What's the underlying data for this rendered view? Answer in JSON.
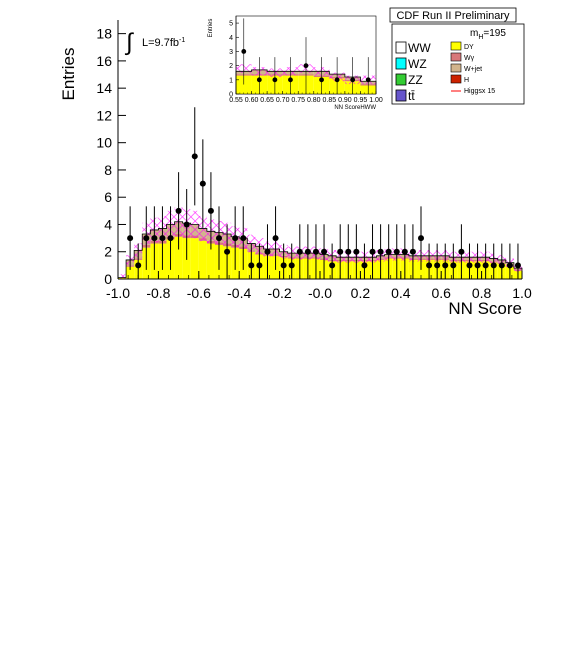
{
  "chart_data": [
    {
      "type": "bar",
      "subtype": "stacked-histogram",
      "title": "CDF Run II Preliminary",
      "xlabel": "NN Score",
      "ylabel": "Entries",
      "xlim": [
        -1.0,
        1.0
      ],
      "ylim": [
        0,
        19
      ],
      "x_ticks": [
        "-1.0",
        "-0.8",
        "-0.6",
        "-0.4",
        "-0.2",
        "-0.0",
        "0.2",
        "0.4",
        "0.6",
        "0.8",
        "1.0"
      ],
      "y_ticks": [
        "0",
        "2",
        "4",
        "6",
        "8",
        "10",
        "12",
        "14",
        "16",
        "18"
      ],
      "luminosity_label": "L=9.7fb",
      "luminosity_sup": "-1",
      "mass_label": "m",
      "mass_sub": "H",
      "mass_value": "=195",
      "bin_edges": [
        -1.0,
        -0.96,
        -0.92,
        -0.88,
        -0.84,
        -0.8,
        -0.76,
        -0.72,
        -0.68,
        -0.64,
        -0.6,
        -0.56,
        -0.52,
        -0.48,
        -0.44,
        -0.4,
        -0.36,
        -0.32,
        -0.28,
        -0.24,
        -0.2,
        -0.16,
        -0.12,
        -0.08,
        -0.04,
        0.0,
        0.04,
        0.08,
        0.12,
        0.16,
        0.2,
        0.24,
        0.28,
        0.32,
        0.36,
        0.4,
        0.44,
        0.48,
        0.52,
        0.56,
        0.6,
        0.64,
        0.68,
        0.72,
        0.76,
        0.8,
        0.84,
        0.88,
        0.92,
        0.96,
        1.0
      ],
      "series": [
        {
          "name": "DY",
          "color": "#ffff00",
          "values": [
            0.1,
            0.9,
            1.4,
            2.3,
            2.6,
            2.6,
            2.9,
            3.1,
            3.0,
            3.0,
            2.8,
            2.6,
            2.5,
            2.4,
            2.3,
            2.2,
            2.0,
            1.8,
            1.7,
            1.7,
            1.6,
            1.5,
            1.5,
            1.5,
            1.5,
            1.4,
            1.3,
            1.3,
            1.3,
            1.3,
            1.3,
            1.3,
            1.4,
            1.5,
            1.5,
            1.5,
            1.4,
            1.4,
            1.4,
            1.4,
            1.4,
            1.3,
            1.3,
            1.3,
            1.3,
            1.3,
            1.2,
            1.1,
            0.9,
            0.6
          ]
        },
        {
          "name": "Wγ",
          "color": "#d8787a",
          "values": [
            0.0,
            0.1,
            0.1,
            0.2,
            0.2,
            0.2,
            0.2,
            0.2,
            0.2,
            0.2,
            0.2,
            0.2,
            0.2,
            0.2,
            0.2,
            0.2,
            0.1,
            0.1,
            0.1,
            0.1,
            0.1,
            0.1,
            0.1,
            0.1,
            0.1,
            0.1,
            0.1,
            0.1,
            0.1,
            0.1,
            0.1,
            0.1,
            0.1,
            0.1,
            0.1,
            0.1,
            0.1,
            0.1,
            0.1,
            0.1,
            0.1,
            0.1,
            0.1,
            0.1,
            0.1,
            0.1,
            0.1,
            0.1,
            0.1,
            0.1
          ]
        },
        {
          "name": "W+jet",
          "color": "#d2b48c",
          "values": [
            0.0,
            0.4,
            0.6,
            0.8,
            0.8,
            0.9,
            0.9,
            0.9,
            0.9,
            0.8,
            0.7,
            0.7,
            0.7,
            0.7,
            0.6,
            0.6,
            0.5,
            0.5,
            0.4,
            0.4,
            0.3,
            0.3,
            0.3,
            0.3,
            0.3,
            0.3,
            0.3,
            0.2,
            0.2,
            0.2,
            0.2,
            0.2,
            0.2,
            0.2,
            0.2,
            0.2,
            0.2,
            0.2,
            0.2,
            0.2,
            0.2,
            0.2,
            0.2,
            0.2,
            0.2,
            0.2,
            0.2,
            0.2,
            0.2,
            0.1
          ]
        }
      ],
      "uncertainty_band": {
        "color": "#ff00ff",
        "relative_width": 0.25
      },
      "data_points": {
        "name": "Data",
        "x": [
          -0.94,
          -0.9,
          -0.86,
          -0.82,
          -0.78,
          -0.74,
          -0.7,
          -0.66,
          -0.62,
          -0.58,
          -0.54,
          -0.5,
          -0.46,
          -0.42,
          -0.38,
          -0.34,
          -0.3,
          -0.26,
          -0.22,
          -0.18,
          -0.14,
          -0.1,
          -0.06,
          -0.02,
          0.02,
          0.06,
          0.1,
          0.14,
          0.18,
          0.22,
          0.26,
          0.3,
          0.34,
          0.38,
          0.42,
          0.46,
          0.5,
          0.54,
          0.58,
          0.62,
          0.66,
          0.7,
          0.74,
          0.78,
          0.82,
          0.86,
          0.9,
          0.94,
          0.98
        ],
        "y": [
          3,
          1,
          3,
          3,
          3,
          3,
          5,
          4,
          9,
          7,
          5,
          3,
          2,
          3,
          3,
          1,
          1,
          2,
          3,
          1,
          1,
          2,
          2,
          2,
          2,
          1,
          2,
          2,
          2,
          1,
          2,
          2,
          2,
          2,
          2,
          2,
          3,
          1,
          1,
          1,
          1,
          2,
          1,
          1,
          1,
          1,
          1,
          1,
          1
        ]
      },
      "legend": {
        "placement": "top-right",
        "entries": [
          {
            "label": "WW",
            "color": "#ffffff"
          },
          {
            "label": "WZ",
            "color": "#00ffff"
          },
          {
            "label": "ZZ",
            "color": "#33cc33"
          },
          {
            "label": "tt̄",
            "color": "#6655cc"
          },
          {
            "label": "DY",
            "color": "#ffff00"
          },
          {
            "label": "Wγ",
            "color": "#d8787a"
          },
          {
            "label": "W+jet",
            "color": "#d2b48c"
          },
          {
            "label": "H",
            "color": "#cc2200"
          },
          {
            "label": "Higgsx 15",
            "color": "#ff0000"
          }
        ]
      }
    },
    {
      "type": "bar",
      "subtype": "inset-stacked-histogram",
      "xlabel": "NN ScoreHWW",
      "ylabel": "Entries",
      "xlim": [
        0.55,
        1.0
      ],
      "ylim": [
        0,
        5.5
      ],
      "x_ticks": [
        "0.55",
        "0.60",
        "0.65",
        "0.70",
        "0.75",
        "0.80",
        "0.85",
        "0.90",
        "0.95",
        "1.00"
      ],
      "y_ticks": [
        "0",
        "1",
        "2",
        "3",
        "4",
        "5"
      ],
      "bin_edges": [
        0.55,
        0.6,
        0.65,
        0.7,
        0.75,
        0.8,
        0.85,
        0.9,
        0.95,
        1.0
      ],
      "series": [
        {
          "name": "DY",
          "color": "#ffff00",
          "values": [
            1.3,
            1.3,
            1.3,
            1.3,
            1.3,
            1.2,
            1.1,
            0.9,
            0.6
          ]
        },
        {
          "name": "Wγ",
          "color": "#d8787a",
          "values": [
            0.1,
            0.1,
            0.1,
            0.1,
            0.1,
            0.1,
            0.1,
            0.1,
            0.1
          ]
        },
        {
          "name": "W+jet",
          "color": "#d2b48c",
          "values": [
            0.2,
            0.3,
            0.2,
            0.2,
            0.2,
            0.3,
            0.2,
            0.2,
            0.2
          ]
        }
      ],
      "uncertainty_band": {
        "color": "#ff00ff",
        "values": [
          1.8,
          1.6,
          1.5,
          1.6,
          1.8,
          1.6,
          1.2,
          1.0,
          1.0
        ]
      },
      "data_points": {
        "name": "Data",
        "x": [
          0.575,
          0.625,
          0.675,
          0.725,
          0.775,
          0.825,
          0.875,
          0.925,
          0.975
        ],
        "y": [
          3,
          1,
          1,
          1,
          2,
          1,
          1,
          1,
          1
        ]
      }
    }
  ]
}
